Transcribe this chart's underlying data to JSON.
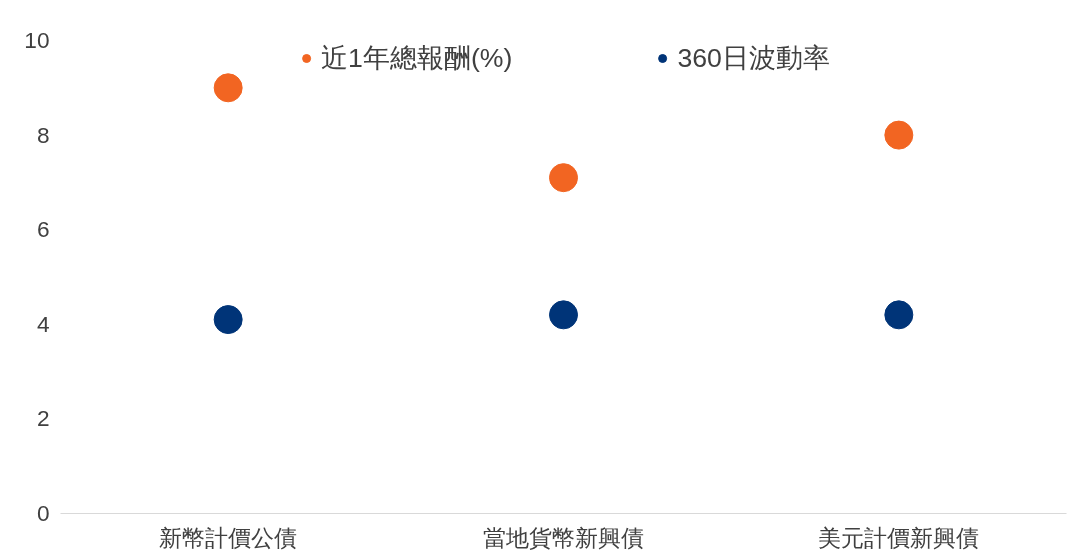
{
  "chart_data": {
    "type": "scatter",
    "categories": [
      "新幣計價公債",
      "當地貨幣新興債",
      "美元計價新興債"
    ],
    "series": [
      {
        "name": "近1年總報酬(%)",
        "color": "#f26522",
        "values": [
          9.0,
          7.1,
          8.0
        ]
      },
      {
        "name": "360日波動率",
        "color": "#003478",
        "values": [
          4.1,
          4.2,
          4.2
        ]
      }
    ],
    "ylim": [
      0,
      10
    ],
    "yticks": [
      0,
      2,
      4,
      6,
      8,
      10
    ],
    "grid": false,
    "legend": "top",
    "marker": "circle"
  }
}
